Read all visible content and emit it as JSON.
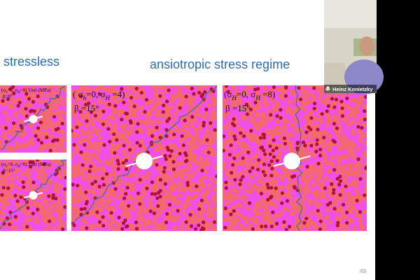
{
  "slide": {
    "title_left": "stressless",
    "title_right": "ansiotropic stress regime",
    "page_number": "49",
    "panels": [
      {
        "label": [
          "(σ",
          "h",
          "=0, σ",
          "H",
          "=0) Unit (MPa)"
        ],
        "angle": "β=0°"
      },
      {
        "label": [
          "(σ",
          "h",
          "=0, σ",
          "H",
          "=0) Unit (MPa)"
        ],
        "angle": "β=15°"
      },
      {
        "label": [
          "( σ",
          "h",
          "=0, σ",
          "H",
          " =4)"
        ],
        "angle": "β =15°"
      },
      {
        "label": [
          "(σ",
          "H",
          "=0, σ",
          "H",
          " =8)"
        ],
        "angle": "β =15°"
      }
    ]
  },
  "participant": {
    "name": "Heinz Konietzky"
  }
}
